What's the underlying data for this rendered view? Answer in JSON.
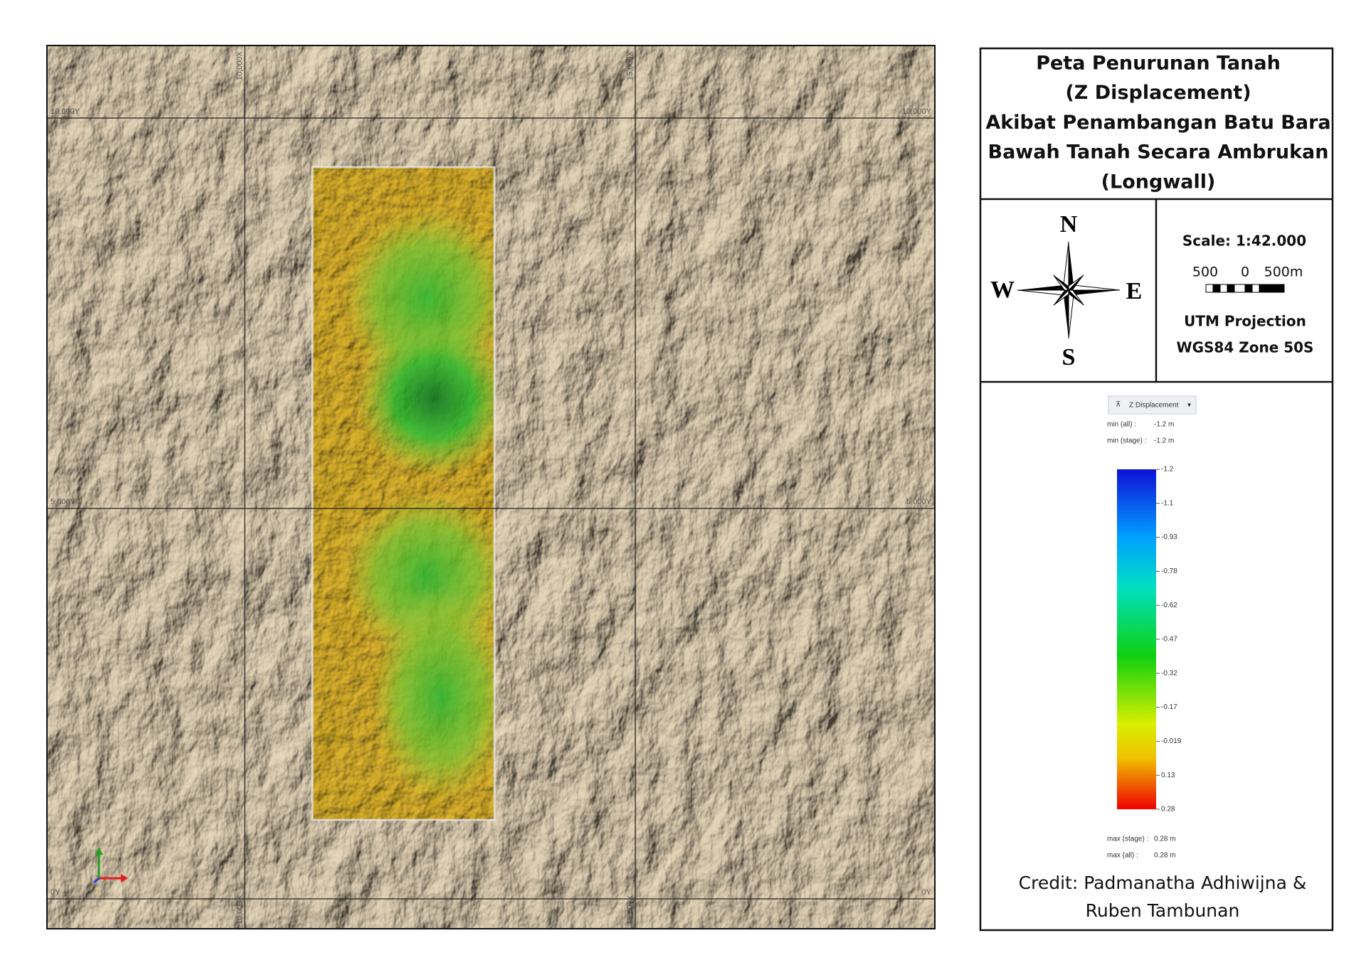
{
  "title_lines": [
    "Peta Penurunan Tanah",
    "(Z Displacement)",
    "Akibat Penambangan Batu Bara",
    "Bawah Tanah Secara Ambrukan",
    "(Longwall)"
  ],
  "grid_labels": {
    "x": [
      "10,000X",
      "15,000X"
    ],
    "y": [
      "10,000Y",
      "5,000Y",
      "0Y"
    ]
  },
  "compass": {
    "north": "N",
    "south": "S",
    "west": "W",
    "east": "E"
  },
  "scale": {
    "text": "Scale: 1:42.000",
    "bar_labels": [
      "500",
      "0",
      "500m"
    ]
  },
  "projection": [
    "UTM Projection",
    "WGS84 Zone 50S"
  ],
  "legend": {
    "title": "Z Displacement",
    "min_rows": [
      [
        "min (all) :",
        "-1.2 m"
      ],
      [
        "min (stage) :",
        "-1.2 m"
      ]
    ],
    "ticks": [
      -1.2,
      -1.1,
      -0.93,
      -0.78,
      -0.62,
      -0.47,
      -0.32,
      -0.17,
      -0.019,
      0.13,
      0.28
    ],
    "max_rows": [
      [
        "max (stage) :",
        "0.28 m"
      ],
      [
        "max (all) :",
        "0.28 m"
      ]
    ]
  },
  "credit": [
    "Credit: Padmanatha Adhiwijna &",
    "Ruben Tambunan"
  ]
}
